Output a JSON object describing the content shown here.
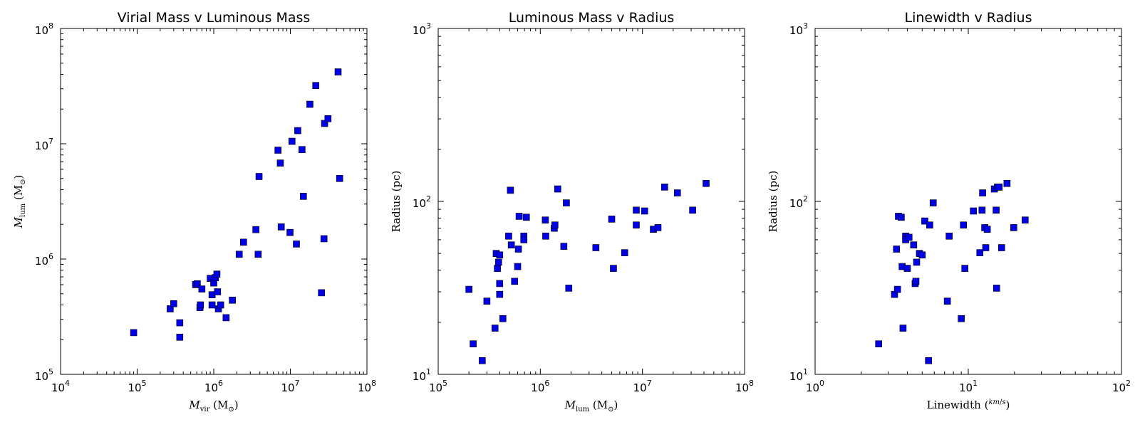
{
  "chart_data": [
    {
      "type": "scatter",
      "title": "Virial Mass v Luminous Mass",
      "xlabel": {
        "main": "M",
        "sub": "vir",
        "unit": "(M",
        "unit_sub": "⊙",
        "unit_close": ")"
      },
      "ylabel": {
        "main": "M",
        "sub": "lum",
        "unit": "(M",
        "unit_sub": "⊙",
        "unit_close": ")"
      },
      "xscale": "log",
      "yscale": "log",
      "xlim": [
        10000,
        100000000
      ],
      "ylim": [
        100000,
        100000000
      ],
      "xticks": [
        {
          "base": "10",
          "exp": "4"
        },
        {
          "base": "10",
          "exp": "5"
        },
        {
          "base": "10",
          "exp": "6"
        },
        {
          "base": "10",
          "exp": "7"
        },
        {
          "base": "10",
          "exp": "8"
        }
      ],
      "yticks": [
        {
          "base": "10",
          "exp": "5"
        },
        {
          "base": "10",
          "exp": "6"
        },
        {
          "base": "10",
          "exp": "7"
        },
        {
          "base": "10",
          "exp": "8"
        }
      ],
      "marker_color": "#0000e6",
      "points": [
        [
          90000,
          230000
        ],
        [
          270000,
          370000
        ],
        [
          300000,
          410000
        ],
        [
          360000,
          280000
        ],
        [
          360000,
          210000
        ],
        [
          580000,
          600000
        ],
        [
          610000,
          610000
        ],
        [
          660000,
          380000
        ],
        [
          670000,
          400000
        ],
        [
          700000,
          550000
        ],
        [
          900000,
          680000
        ],
        [
          950000,
          490000
        ],
        [
          950000,
          400000
        ],
        [
          1000000,
          620000
        ],
        [
          1050000,
          690000
        ],
        [
          1100000,
          740000
        ],
        [
          1120000,
          520000
        ],
        [
          1150000,
          370000
        ],
        [
          1230000,
          400000
        ],
        [
          1450000,
          310000
        ],
        [
          1750000,
          440000
        ],
        [
          2150000,
          1100000
        ],
        [
          2450000,
          1400000
        ],
        [
          3550000,
          1800000
        ],
        [
          3800000,
          1100000
        ],
        [
          3900000,
          5200000
        ],
        [
          6900000,
          8800000
        ],
        [
          7400000,
          6800000
        ],
        [
          7600000,
          1900000
        ],
        [
          9900000,
          1700000
        ],
        [
          10500000,
          10500000
        ],
        [
          12000000,
          1350000
        ],
        [
          12500000,
          13000000
        ],
        [
          14200000,
          8900000
        ],
        [
          14800000,
          3500000
        ],
        [
          18000000,
          22000000
        ],
        [
          21500000,
          32000000
        ],
        [
          25500000,
          510000
        ],
        [
          27500000,
          1500000
        ],
        [
          28000000,
          15000000
        ],
        [
          31000000,
          16500000
        ],
        [
          42000000,
          42000000
        ],
        [
          44000000,
          5000000
        ]
      ]
    },
    {
      "type": "scatter",
      "title": "Luminous Mass v Radius",
      "xlabel": {
        "main": "M",
        "sub": "lum",
        "unit": "(M",
        "unit_sub": "⊙",
        "unit_close": ")"
      },
      "ylabel": {
        "main": "Radius (pc)"
      },
      "xscale": "log",
      "yscale": "log",
      "xlim": [
        100000,
        100000000
      ],
      "ylim": [
        10,
        1000
      ],
      "xticks": [
        {
          "base": "10",
          "exp": "5"
        },
        {
          "base": "10",
          "exp": "6"
        },
        {
          "base": "10",
          "exp": "7"
        },
        {
          "base": "10",
          "exp": "8"
        }
      ],
      "yticks": [
        {
          "base": "10",
          "exp": "1"
        },
        {
          "base": "10",
          "exp": "2"
        },
        {
          "base": "10",
          "exp": "3"
        }
      ],
      "marker_color": "#0000e6",
      "points": [
        [
          200000,
          31
        ],
        [
          220000,
          15
        ],
        [
          270000,
          12
        ],
        [
          300000,
          26.5
        ],
        [
          360000,
          18.5
        ],
        [
          370000,
          50
        ],
        [
          380000,
          41
        ],
        [
          390000,
          44.5
        ],
        [
          400000,
          49
        ],
        [
          400000,
          33.5
        ],
        [
          400000,
          29
        ],
        [
          430000,
          21
        ],
        [
          490000,
          63
        ],
        [
          510000,
          116
        ],
        [
          520000,
          56
        ],
        [
          560000,
          34.5
        ],
        [
          600000,
          42
        ],
        [
          610000,
          53
        ],
        [
          620000,
          82
        ],
        [
          690000,
          63
        ],
        [
          690000,
          60
        ],
        [
          730000,
          81
        ],
        [
          1120000,
          78
        ],
        [
          1130000,
          63
        ],
        [
          1370000,
          70
        ],
        [
          1390000,
          73
        ],
        [
          1480000,
          118
        ],
        [
          1700000,
          55
        ],
        [
          1800000,
          98
        ],
        [
          1900000,
          31.5
        ],
        [
          3500000,
          54
        ],
        [
          5000000,
          79
        ],
        [
          5200000,
          41
        ],
        [
          6700000,
          50.5
        ],
        [
          8700000,
          89
        ],
        [
          8700000,
          73
        ],
        [
          10500000,
          88
        ],
        [
          12800000,
          69
        ],
        [
          14200000,
          70.5
        ],
        [
          16500000,
          121
        ],
        [
          22000000,
          112
        ],
        [
          31000000,
          89
        ],
        [
          42000000,
          127
        ]
      ]
    },
    {
      "type": "scatter",
      "title": "Linewidth v Radius",
      "xlabel": {
        "main": "Linewidth",
        "frac_num": "km",
        "frac_den": "s"
      },
      "ylabel": {
        "main": "Radius (pc)"
      },
      "xscale": "log",
      "yscale": "log",
      "xlim": [
        1,
        100
      ],
      "ylim": [
        10,
        1000
      ],
      "xticks": [
        {
          "base": "10",
          "exp": "0"
        },
        {
          "base": "10",
          "exp": "1"
        },
        {
          "base": "10",
          "exp": "2"
        }
      ],
      "yticks": [
        {
          "base": "10",
          "exp": "1"
        },
        {
          "base": "10",
          "exp": "2"
        },
        {
          "base": "10",
          "exp": "3"
        }
      ],
      "marker_color": "#0000e6",
      "points": [
        [
          2.6,
          15
        ],
        [
          3.3,
          29
        ],
        [
          3.4,
          53
        ],
        [
          3.45,
          31
        ],
        [
          3.5,
          82
        ],
        [
          3.65,
          81
        ],
        [
          3.7,
          42
        ],
        [
          3.75,
          18.5
        ],
        [
          3.9,
          63
        ],
        [
          3.9,
          60
        ],
        [
          4.0,
          41
        ],
        [
          4.1,
          62
        ],
        [
          4.4,
          56
        ],
        [
          4.5,
          33.5
        ],
        [
          4.55,
          34.5
        ],
        [
          4.6,
          44.5
        ],
        [
          4.8,
          50
        ],
        [
          5.0,
          49
        ],
        [
          5.2,
          77
        ],
        [
          5.5,
          12
        ],
        [
          5.6,
          73
        ],
        [
          5.9,
          98
        ],
        [
          7.3,
          26.5
        ],
        [
          7.5,
          63
        ],
        [
          9.0,
          21
        ],
        [
          9.3,
          73
        ],
        [
          9.5,
          41
        ],
        [
          10.8,
          88
        ],
        [
          11.9,
          50.5
        ],
        [
          12.3,
          89
        ],
        [
          12.4,
          112
        ],
        [
          12.8,
          70.5
        ],
        [
          13.0,
          54
        ],
        [
          13.3,
          69
        ],
        [
          14.8,
          118
        ],
        [
          15.2,
          89
        ],
        [
          15.3,
          31.5
        ],
        [
          15.5,
          121
        ],
        [
          15.9,
          121
        ],
        [
          16.5,
          54
        ],
        [
          17.9,
          127
        ],
        [
          19.8,
          70.5
        ],
        [
          23.5,
          78
        ]
      ]
    }
  ]
}
